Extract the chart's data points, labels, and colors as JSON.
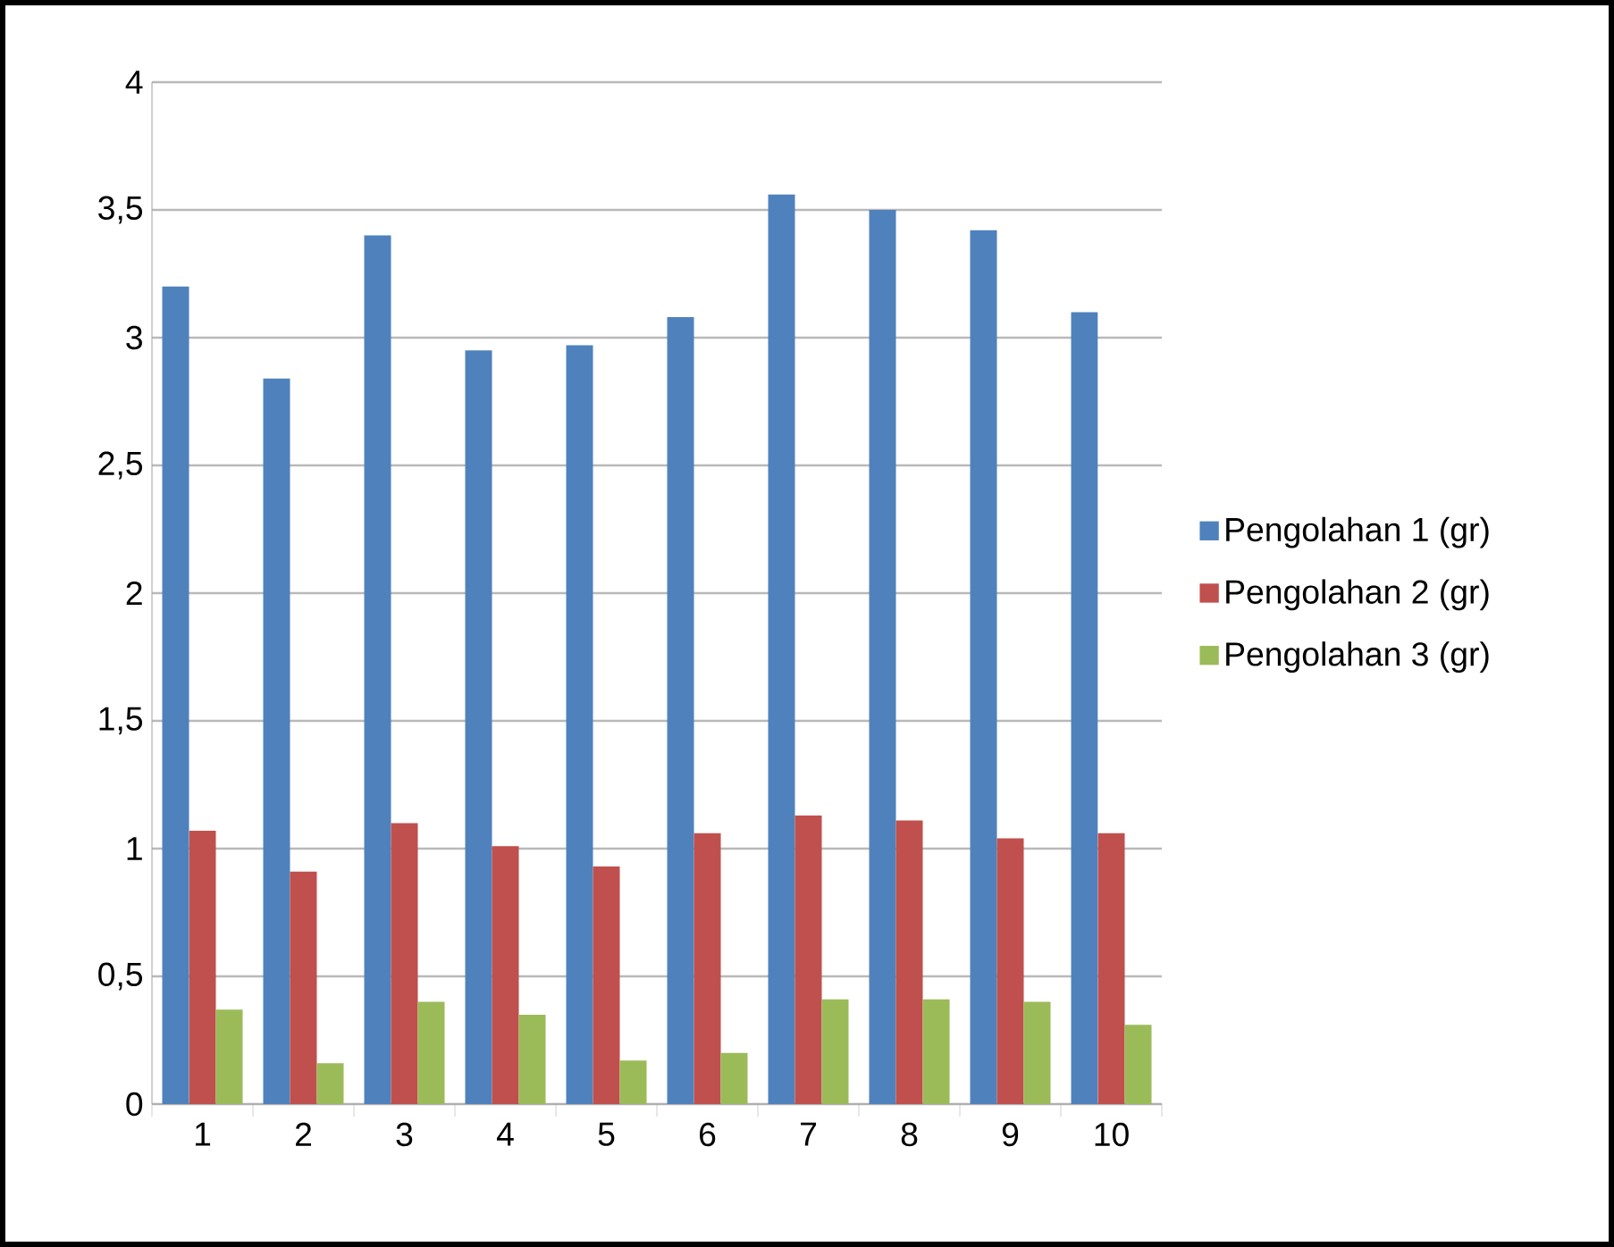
{
  "chart_data": {
    "type": "bar",
    "categories": [
      "1",
      "2",
      "3",
      "4",
      "5",
      "6",
      "7",
      "8",
      "9",
      "10"
    ],
    "series": [
      {
        "name": "Pengolahan 1 (gr)",
        "color": "#4f81bd",
        "values": [
          3.2,
          2.84,
          3.4,
          2.95,
          2.97,
          3.08,
          3.56,
          3.5,
          3.42,
          3.1
        ]
      },
      {
        "name": "Pengolahan 2 (gr)",
        "color": "#c0504d",
        "values": [
          1.07,
          0.91,
          1.1,
          1.01,
          0.93,
          1.06,
          1.13,
          1.11,
          1.04,
          1.06
        ]
      },
      {
        "name": "Pengolahan 3 (gr)",
        "color": "#9bbb59",
        "values": [
          0.37,
          0.16,
          0.4,
          0.35,
          0.17,
          0.2,
          0.41,
          0.41,
          0.4,
          0.31
        ]
      }
    ],
    "ylim": [
      0,
      4
    ],
    "yticks": [
      0,
      {
        "value": 0.5,
        "label": "0,5"
      },
      1,
      {
        "value": 1.5,
        "label": "1,5"
      },
      2,
      {
        "value": 2.5,
        "label": "2,5"
      },
      3,
      {
        "value": 3.5,
        "label": "3,5"
      },
      4
    ],
    "grid": "y",
    "legend": "right"
  }
}
